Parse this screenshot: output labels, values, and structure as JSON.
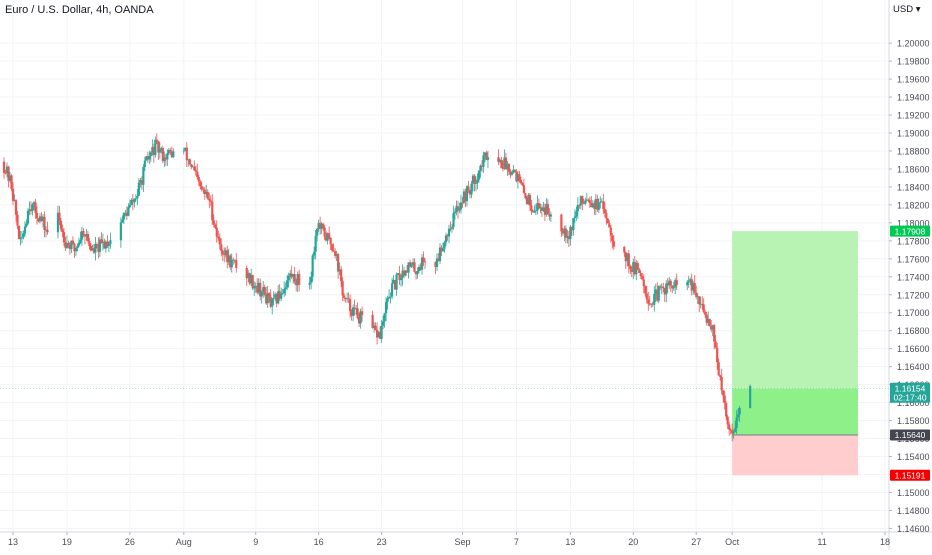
{
  "title": "Euro / U.S. Dollar, 4h, OANDA",
  "currency": "USD",
  "colors": {
    "up": "#26a69a",
    "down": "#ef5350",
    "profit_zone": "#b9f3b4",
    "profit_zone_active": "#8ef088",
    "loss_zone": "#ffcdcd",
    "target_label": "#00c853",
    "stop_label": "#f50000",
    "entry_label": "#434651",
    "price_label": "#26a69a",
    "grid": "#f2f3f5",
    "axis_text": "#4a4e57"
  },
  "chart_data": {
    "type": "candlestick",
    "y_axis": {
      "range": [
        1.1456,
        1.2048
      ],
      "ticks": [
        "1.20000",
        "1.19800",
        "1.19600",
        "1.19400",
        "1.19200",
        "1.19000",
        "1.18800",
        "1.18600",
        "1.18400",
        "1.18200",
        "1.18000",
        "1.17800",
        "1.17600",
        "1.17400",
        "1.17200",
        "1.17000",
        "1.16800",
        "1.16600",
        "1.16400",
        "1.16200",
        "1.16000",
        "1.15800",
        "1.15600",
        "1.15400",
        "1.15200",
        "1.15000",
        "1.14800",
        "1.14600"
      ],
      "tick_values": [
        1.2,
        1.198,
        1.196,
        1.194,
        1.192,
        1.19,
        1.188,
        1.186,
        1.184,
        1.182,
        1.18,
        1.178,
        1.176,
        1.174,
        1.172,
        1.17,
        1.168,
        1.166,
        1.164,
        1.162,
        1.16,
        1.158,
        1.156,
        1.154,
        1.152,
        1.15,
        1.148,
        1.146
      ],
      "grid": true
    },
    "x_axis": {
      "range_days": [
        "2021-07-13",
        "2021-10-18"
      ],
      "ticks": [
        {
          "label": "13",
          "date": "2021-07-13"
        },
        {
          "label": "19",
          "date": "2021-07-19"
        },
        {
          "label": "26",
          "date": "2021-07-26"
        },
        {
          "label": "Aug",
          "date": "2021-08-01"
        },
        {
          "label": "9",
          "date": "2021-08-09"
        },
        {
          "label": "16",
          "date": "2021-08-16"
        },
        {
          "label": "23",
          "date": "2021-08-23"
        },
        {
          "label": "Sep",
          "date": "2021-09-01"
        },
        {
          "label": "7",
          "date": "2021-09-07"
        },
        {
          "label": "13",
          "date": "2021-09-13"
        },
        {
          "label": "20",
          "date": "2021-09-20"
        },
        {
          "label": "27",
          "date": "2021-09-27"
        },
        {
          "label": "Oct",
          "date": "2021-10-01"
        },
        {
          "label": "11",
          "date": "2021-10-11"
        },
        {
          "label": "18",
          "date": "2021-10-18"
        }
      ]
    },
    "price_path": [
      [
        "2021-07-12",
        1.1868
      ],
      [
        "2021-07-13",
        1.1842
      ],
      [
        "2021-07-14",
        1.1775
      ],
      [
        "2021-07-15",
        1.1822
      ],
      [
        "2021-07-16",
        1.1808
      ],
      [
        "2021-07-17",
        1.179
      ],
      [
        "2021-07-18",
        1.1812
      ],
      [
        "2021-07-19",
        1.178
      ],
      [
        "2021-07-20",
        1.177
      ],
      [
        "2021-07-21",
        1.1792
      ],
      [
        "2021-07-22",
        1.1768
      ],
      [
        "2021-07-23",
        1.1775
      ],
      [
        "2021-07-24",
        1.1782
      ],
      [
        "2021-07-26",
        1.1815
      ],
      [
        "2021-07-27",
        1.1832
      ],
      [
        "2021-07-28",
        1.1868
      ],
      [
        "2021-07-29",
        1.1885
      ],
      [
        "2021-07-30",
        1.1874
      ],
      [
        "2021-07-31",
        1.1878
      ],
      [
        "2021-08-01",
        1.1883
      ],
      [
        "2021-08-02",
        1.1864
      ],
      [
        "2021-08-03",
        1.1838
      ],
      [
        "2021-08-04",
        1.1826
      ],
      [
        "2021-08-05",
        1.178
      ],
      [
        "2021-08-06",
        1.176
      ],
      [
        "2021-08-07",
        1.1752
      ],
      [
        "2021-08-08",
        1.1744
      ],
      [
        "2021-08-09",
        1.1733
      ],
      [
        "2021-08-10",
        1.1722
      ],
      [
        "2021-08-11",
        1.1708
      ],
      [
        "2021-08-12",
        1.1723
      ],
      [
        "2021-08-13",
        1.1742
      ],
      [
        "2021-08-14",
        1.1735
      ],
      [
        "2021-08-15",
        1.1722
      ],
      [
        "2021-08-16",
        1.1798
      ],
      [
        "2021-08-17",
        1.1785
      ],
      [
        "2021-08-18",
        1.177
      ],
      [
        "2021-08-19",
        1.1715
      ],
      [
        "2021-08-20",
        1.1702
      ],
      [
        "2021-08-21",
        1.1692
      ],
      [
        "2021-08-22",
        1.168
      ],
      [
        "2021-08-23",
        1.1675
      ],
      [
        "2021-08-24",
        1.172
      ],
      [
        "2021-08-25",
        1.1738
      ],
      [
        "2021-08-26",
        1.1752
      ],
      [
        "2021-08-27",
        1.1748
      ],
      [
        "2021-08-28",
        1.176
      ],
      [
        "2021-08-29",
        1.1748
      ],
      [
        "2021-08-30",
        1.1778
      ],
      [
        "2021-08-31",
        1.1802
      ],
      [
        "2021-09-01",
        1.1825
      ],
      [
        "2021-09-02",
        1.1838
      ],
      [
        "2021-09-03",
        1.1858
      ],
      [
        "2021-09-04",
        1.188
      ],
      [
        "2021-09-05",
        1.187
      ],
      [
        "2021-09-06",
        1.1865
      ],
      [
        "2021-09-07",
        1.1858
      ],
      [
        "2021-09-08",
        1.1832
      ],
      [
        "2021-09-09",
        1.1818
      ],
      [
        "2021-09-10",
        1.1818
      ],
      [
        "2021-09-11",
        1.181
      ],
      [
        "2021-09-12",
        1.18
      ],
      [
        "2021-09-13",
        1.1787
      ],
      [
        "2021-09-14",
        1.1818
      ],
      [
        "2021-09-15",
        1.183
      ],
      [
        "2021-09-16",
        1.182
      ],
      [
        "2021-09-17",
        1.1815
      ],
      [
        "2021-09-18",
        1.178
      ],
      [
        "2021-09-19",
        1.1768
      ],
      [
        "2021-09-20",
        1.175
      ],
      [
        "2021-09-21",
        1.1745
      ],
      [
        "2021-09-22",
        1.171
      ],
      [
        "2021-09-23",
        1.1722
      ],
      [
        "2021-09-24",
        1.173
      ],
      [
        "2021-09-25",
        1.1728
      ],
      [
        "2021-09-26",
        1.174
      ],
      [
        "2021-09-27",
        1.1722
      ],
      [
        "2021-09-28",
        1.17
      ],
      [
        "2021-09-29",
        1.1685
      ],
      [
        "2021-09-30",
        1.161
      ],
      [
        "2021-10-01",
        1.1565
      ],
      [
        "2021-10-02",
        1.159
      ],
      [
        "2021-10-03",
        1.1615
      ]
    ],
    "position": {
      "target": "1.17908",
      "price": "1.16154",
      "countdown": "02:17:40",
      "entry": "1.15640",
      "stop": "1.15191",
      "start_date": "2021-10-01",
      "end_date": "2021-10-15"
    },
    "grid": true
  }
}
